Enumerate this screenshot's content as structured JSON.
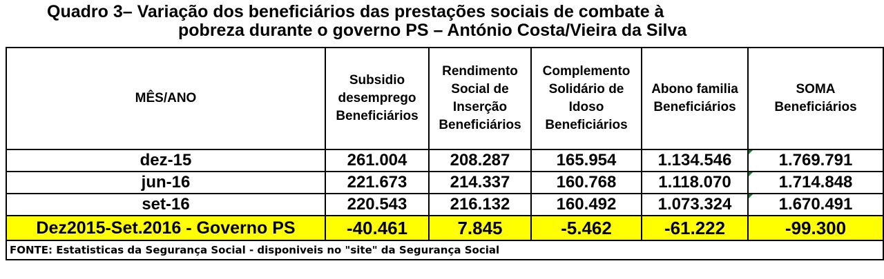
{
  "title": {
    "line1": "Quadro 3– Variação dos beneficiários das prestações sociais de combate à",
    "line2": "pobreza durante o governo PS – António Costa/Vieira da Silva"
  },
  "headers": {
    "mes": "MÊS/ANO",
    "subsidio": [
      "Subsidio",
      "desemprego",
      "Beneficiários"
    ],
    "rsi": [
      "Rendimento",
      "Social de",
      "Inserção",
      "Beneficiários"
    ],
    "csi": [
      "Complemento",
      "Solidário de",
      "Idoso",
      "Beneficiários"
    ],
    "abono": [
      "Abono familia",
      "Beneficiários"
    ],
    "soma": [
      "SOMA",
      "Beneficiários"
    ]
  },
  "rows": [
    {
      "mes": "dez-15",
      "subsidio": "261.004",
      "rsi": "208.287",
      "csi": "165.954",
      "abono": "1.134.546",
      "soma": "1.769.791"
    },
    {
      "mes": "jun-16",
      "subsidio": "221.673",
      "rsi": "214.337",
      "csi": "160.768",
      "abono": "1.118.070",
      "soma": "1.714.848"
    },
    {
      "mes": "set-16",
      "subsidio": "220.543",
      "rsi": "216.132",
      "csi": "160.492",
      "abono": "1.073.324",
      "soma": "1.670.491"
    }
  ],
  "total": {
    "mes": "Dez2015-Set.2016 - Governo PS",
    "subsidio": "-40.461",
    "rsi": "7.845",
    "csi": "-5.462",
    "abono": "-61.222",
    "soma": "-99.300"
  },
  "fonte": "FONTE: Estatisticas da Segurança Social - disponiveis no \"site\" da Segurança Social",
  "colors": {
    "highlight": "#ffff00",
    "cell_marker": "#1c7a2c"
  }
}
